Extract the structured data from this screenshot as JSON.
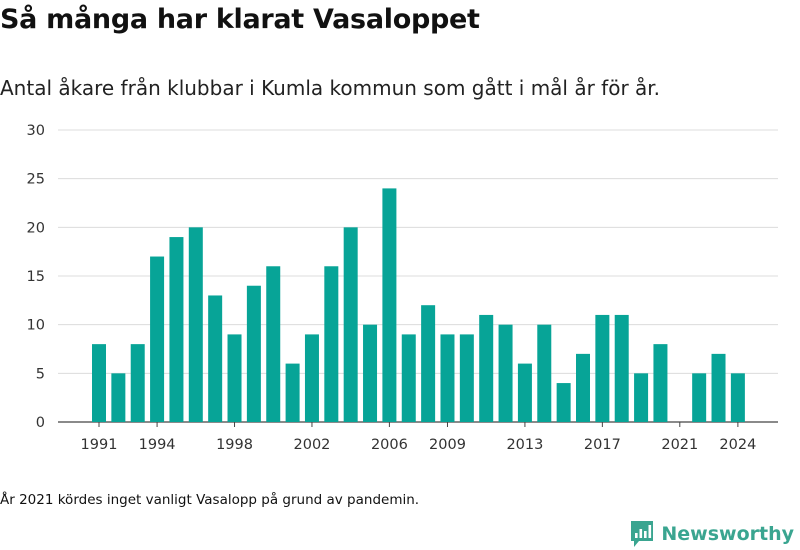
{
  "title": "Så många har klarat Vasaloppet",
  "subtitle": "Antal åkare från klubbar i Kumla kommun som gått i mål år för år.",
  "note": "År 2021 kördes inget vanligt Vasalopp på grund av pandemin.",
  "brand": {
    "name": "Newsworthy",
    "icon": "newsworthy-chart-logo-icon"
  },
  "colors": {
    "bar": "#07a497",
    "grid": "#dcdcdc",
    "axis": "#444444",
    "brand": "#3aa590"
  },
  "chart_data": {
    "type": "bar",
    "title": "Så många har klarat Vasaloppet",
    "subtitle": "Antal åkare från klubbar i Kumla kommun som gått i mål år för år.",
    "x": [
      1991,
      1992,
      1993,
      1994,
      1995,
      1996,
      1997,
      1998,
      1999,
      2000,
      2001,
      2002,
      2003,
      2004,
      2005,
      2006,
      2007,
      2008,
      2009,
      2010,
      2011,
      2012,
      2013,
      2014,
      2015,
      2016,
      2017,
      2018,
      2019,
      2020,
      2021,
      2022,
      2023,
      2024
    ],
    "values": [
      8,
      5,
      8,
      17,
      19,
      20,
      13,
      9,
      14,
      16,
      6,
      9,
      16,
      20,
      10,
      24,
      9,
      12,
      9,
      9,
      11,
      10,
      6,
      10,
      4,
      7,
      11,
      11,
      5,
      8,
      0,
      5,
      7,
      5
    ],
    "x_ticks": [
      1991,
      1994,
      1998,
      2002,
      2006,
      2009,
      2013,
      2017,
      2021,
      2024
    ],
    "y_ticks": [
      0,
      5,
      10,
      15,
      20,
      25,
      30
    ],
    "ylim": [
      0,
      30
    ],
    "xlabel": "",
    "ylabel": "",
    "grid": true,
    "legend": "none"
  }
}
